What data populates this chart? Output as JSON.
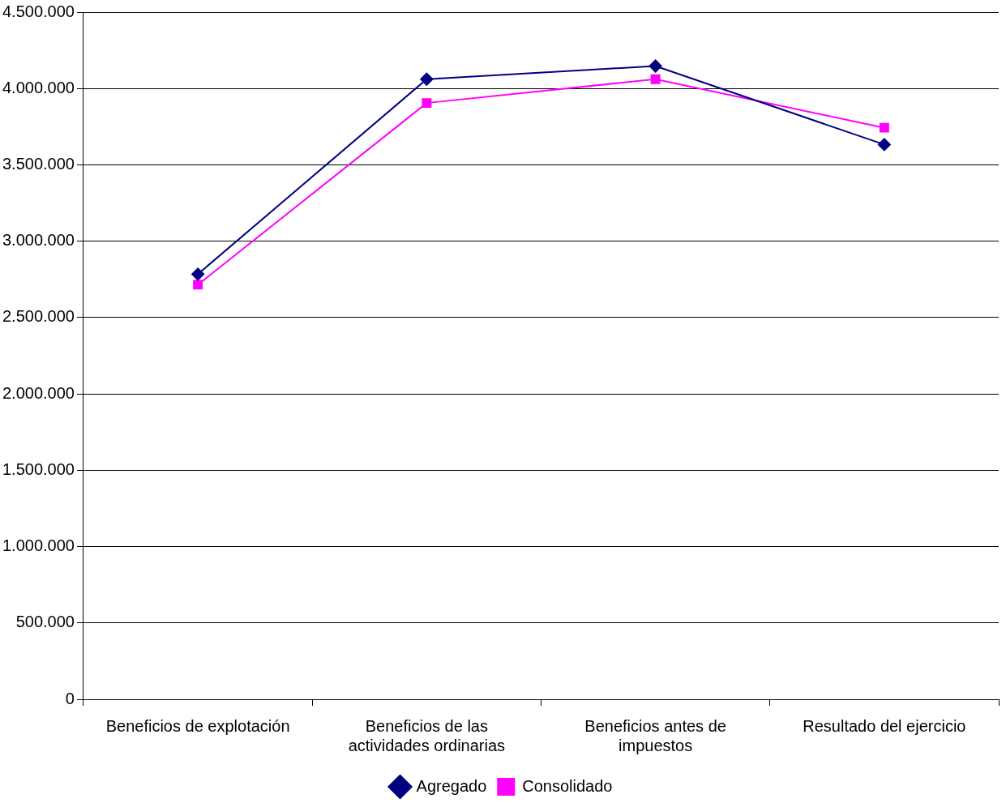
{
  "chart_data": {
    "type": "line",
    "categories": [
      "Beneficios de explotación",
      "Beneficios de las actividades ordinarias",
      "Beneficios antes de impuestos",
      "Resultado del ejercicio"
    ],
    "series": [
      {
        "name": "Agregado",
        "color": "#000080",
        "marker": "diamond",
        "values": [
          2784000,
          4061000,
          4147000,
          3633000
        ]
      },
      {
        "name": "Consolidado",
        "color": "#ff00ff",
        "marker": "square",
        "values": [
          2715000,
          3905000,
          4061000,
          3743000
        ]
      }
    ],
    "ylim": [
      0,
      4500000
    ],
    "yticks": [
      {
        "value": 0,
        "label": "0"
      },
      {
        "value": 500000,
        "label": "500.000"
      },
      {
        "value": 1000000,
        "label": "1.000.000"
      },
      {
        "value": 1500000,
        "label": "1.500.000"
      },
      {
        "value": 2000000,
        "label": "2.000.000"
      },
      {
        "value": 2500000,
        "label": "2.500.000"
      },
      {
        "value": 3000000,
        "label": "3.000.000"
      },
      {
        "value": 3500000,
        "label": "3.500.000"
      },
      {
        "value": 4000000,
        "label": "4.000.000"
      },
      {
        "value": 4500000,
        "label": "4.500.000"
      }
    ],
    "grid": "y",
    "legend": "bottom",
    "line_style": "solid"
  }
}
